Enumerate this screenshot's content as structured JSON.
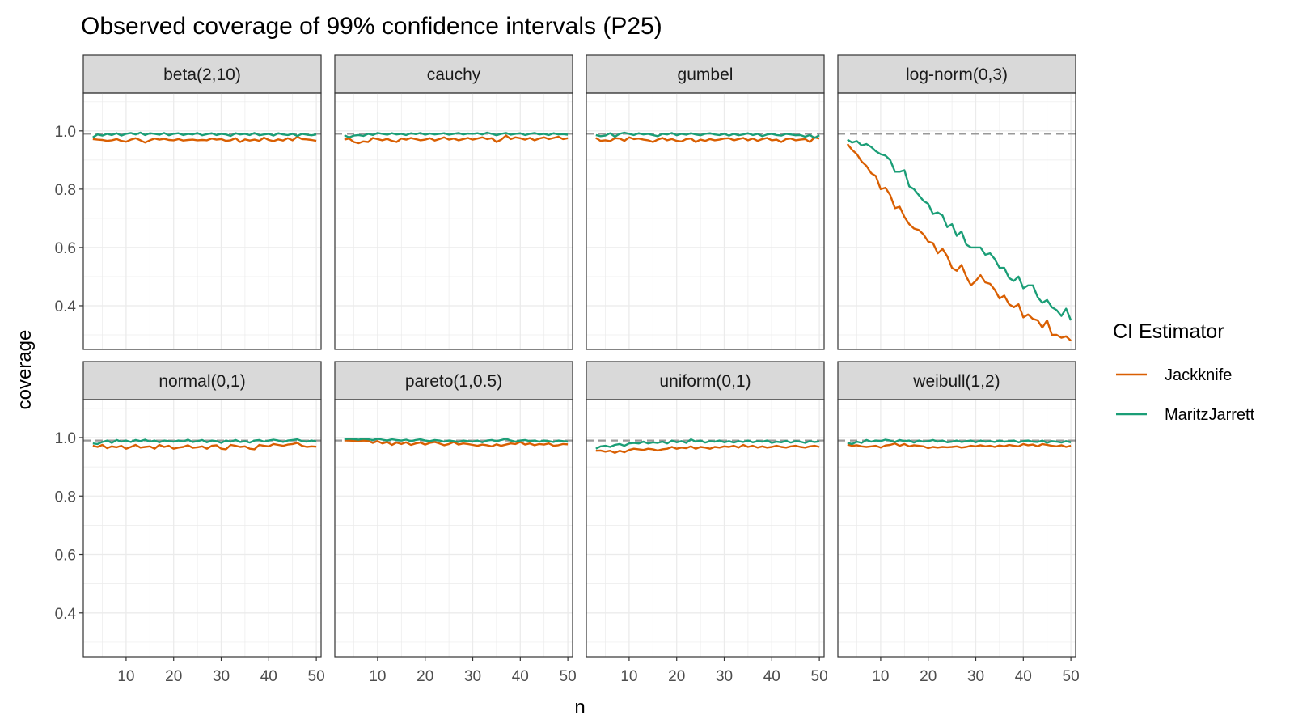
{
  "chart_data": {
    "type": "line",
    "title": "Observed coverage of 99% confidence intervals (P25)",
    "xlabel": "n",
    "ylabel": "coverage",
    "xlim": [
      1,
      51
    ],
    "ylim": [
      0.25,
      1.13
    ],
    "x_ticks": [
      10,
      20,
      30,
      40,
      50
    ],
    "y_ticks": [
      0.4,
      0.6,
      0.8,
      1.0
    ],
    "y_tick_labels": [
      "0.4",
      "0.6",
      "0.8",
      "1.0"
    ],
    "reference_line": 0.99,
    "grid": true,
    "facet_layout": {
      "rows": 2,
      "cols": 4
    },
    "legend": {
      "title": "CI Estimator",
      "position": "right",
      "entries": [
        {
          "name": "Jackknife",
          "color": "#D95F02"
        },
        {
          "name": "MaritzJarrett",
          "color": "#1B9E77"
        }
      ]
    },
    "x": [
      3,
      4,
      5,
      6,
      7,
      8,
      9,
      10,
      11,
      12,
      13,
      14,
      15,
      16,
      17,
      18,
      19,
      20,
      21,
      22,
      23,
      24,
      25,
      26,
      27,
      28,
      29,
      30,
      31,
      32,
      33,
      34,
      35,
      36,
      37,
      38,
      39,
      40,
      41,
      42,
      43,
      44,
      45,
      46,
      47,
      48,
      49,
      50
    ],
    "panels": [
      {
        "title": "beta(2,10)",
        "series": [
          {
            "name": "Jackknife",
            "values": [
              0.972,
              0.97,
              0.969,
              0.966,
              0.968,
              0.972,
              0.966,
              0.963,
              0.97,
              0.975,
              0.968,
              0.96,
              0.968,
              0.974,
              0.97,
              0.973,
              0.969,
              0.968,
              0.972,
              0.967,
              0.969,
              0.97,
              0.968,
              0.969,
              0.968,
              0.974,
              0.97,
              0.972,
              0.966,
              0.968,
              0.975,
              0.962,
              0.971,
              0.967,
              0.97,
              0.966,
              0.977,
              0.969,
              0.965,
              0.971,
              0.967,
              0.975,
              0.968,
              0.98,
              0.972,
              0.971,
              0.969,
              0.966
            ]
          },
          {
            "name": "MaritzJarrett",
            "values": [
              0.978,
              0.988,
              0.984,
              0.99,
              0.986,
              0.992,
              0.984,
              0.99,
              0.993,
              0.988,
              0.994,
              0.986,
              0.992,
              0.99,
              0.987,
              0.993,
              0.985,
              0.99,
              0.992,
              0.986,
              0.99,
              0.988,
              0.993,
              0.985,
              0.989,
              0.992,
              0.986,
              0.99,
              0.988,
              0.983,
              0.992,
              0.988,
              0.99,
              0.986,
              0.993,
              0.985,
              0.988,
              0.99,
              0.984,
              0.992,
              0.988,
              0.986,
              0.99,
              0.983,
              0.99,
              0.987,
              0.985,
              0.988
            ]
          }
        ]
      },
      {
        "title": "cauchy",
        "series": [
          {
            "name": "Jackknife",
            "values": [
              0.97,
              0.974,
              0.962,
              0.958,
              0.964,
              0.962,
              0.976,
              0.972,
              0.968,
              0.973,
              0.966,
              0.962,
              0.974,
              0.97,
              0.976,
              0.972,
              0.968,
              0.97,
              0.975,
              0.967,
              0.972,
              0.978,
              0.97,
              0.974,
              0.968,
              0.972,
              0.976,
              0.97,
              0.974,
              0.978,
              0.972,
              0.975,
              0.962,
              0.97,
              0.984,
              0.972,
              0.978,
              0.975,
              0.97,
              0.976,
              0.968,
              0.974,
              0.978,
              0.972,
              0.976,
              0.98,
              0.972,
              0.975
            ]
          },
          {
            "name": "MaritzJarrett",
            "values": [
              0.985,
              0.978,
              0.984,
              0.986,
              0.983,
              0.99,
              0.986,
              0.993,
              0.99,
              0.987,
              0.992,
              0.988,
              0.99,
              0.986,
              0.992,
              0.989,
              0.993,
              0.987,
              0.991,
              0.988,
              0.99,
              0.992,
              0.987,
              0.99,
              0.993,
              0.988,
              0.991,
              0.99,
              0.992,
              0.988,
              0.994,
              0.99,
              0.985,
              0.99,
              0.993,
              0.987,
              0.99,
              0.992,
              0.986,
              0.99,
              0.993,
              0.988,
              0.99,
              0.986,
              0.992,
              0.988,
              0.989,
              0.987
            ]
          }
        ]
      },
      {
        "title": "gumbel",
        "series": [
          {
            "name": "Jackknife",
            "values": [
              0.976,
              0.966,
              0.968,
              0.965,
              0.975,
              0.974,
              0.966,
              0.978,
              0.972,
              0.974,
              0.97,
              0.968,
              0.962,
              0.97,
              0.976,
              0.968,
              0.972,
              0.966,
              0.964,
              0.972,
              0.974,
              0.962,
              0.97,
              0.966,
              0.972,
              0.968,
              0.97,
              0.974,
              0.975,
              0.968,
              0.972,
              0.976,
              0.968,
              0.974,
              0.966,
              0.972,
              0.976,
              0.968,
              0.97,
              0.962,
              0.972,
              0.974,
              0.968,
              0.97,
              0.972,
              0.962,
              0.978,
              0.974
            ]
          },
          {
            "name": "MaritzJarrett",
            "values": [
              0.986,
              0.982,
              0.984,
              0.992,
              0.98,
              0.99,
              0.994,
              0.99,
              0.986,
              0.992,
              0.988,
              0.99,
              0.986,
              0.982,
              0.99,
              0.988,
              0.993,
              0.985,
              0.99,
              0.987,
              0.992,
              0.988,
              0.985,
              0.99,
              0.992,
              0.988,
              0.986,
              0.99,
              0.984,
              0.99,
              0.985,
              0.988,
              0.992,
              0.986,
              0.99,
              0.982,
              0.988,
              0.99,
              0.986,
              0.984,
              0.99,
              0.988,
              0.985,
              0.986,
              0.98,
              0.986,
              0.976,
              0.985
            ]
          }
        ]
      },
      {
        "title": "log-norm(0,3)",
        "series": [
          {
            "name": "Jackknife",
            "values": [
              0.955,
              0.935,
              0.92,
              0.895,
              0.88,
              0.855,
              0.845,
              0.8,
              0.805,
              0.78,
              0.735,
              0.74,
              0.705,
              0.68,
              0.665,
              0.66,
              0.645,
              0.62,
              0.615,
              0.58,
              0.595,
              0.57,
              0.53,
              0.52,
              0.54,
              0.5,
              0.47,
              0.485,
              0.505,
              0.48,
              0.475,
              0.455,
              0.425,
              0.435,
              0.405,
              0.395,
              0.405,
              0.36,
              0.37,
              0.355,
              0.35,
              0.325,
              0.35,
              0.3,
              0.3,
              0.29,
              0.295,
              0.28
            ]
          },
          {
            "name": "MaritzJarrett",
            "values": [
              0.97,
              0.96,
              0.965,
              0.95,
              0.955,
              0.945,
              0.93,
              0.92,
              0.915,
              0.9,
              0.86,
              0.86,
              0.865,
              0.81,
              0.8,
              0.78,
              0.76,
              0.75,
              0.715,
              0.72,
              0.71,
              0.67,
              0.68,
              0.64,
              0.655,
              0.61,
              0.6,
              0.6,
              0.6,
              0.575,
              0.58,
              0.56,
              0.53,
              0.53,
              0.495,
              0.485,
              0.5,
              0.46,
              0.47,
              0.47,
              0.43,
              0.41,
              0.42,
              0.395,
              0.385,
              0.365,
              0.39,
              0.35
            ]
          }
        ]
      },
      {
        "title": "normal(0,1)",
        "series": [
          {
            "name": "Jackknife",
            "values": [
              0.972,
              0.968,
              0.975,
              0.964,
              0.97,
              0.967,
              0.972,
              0.962,
              0.968,
              0.975,
              0.966,
              0.968,
              0.97,
              0.962,
              0.975,
              0.968,
              0.972,
              0.962,
              0.966,
              0.968,
              0.974,
              0.965,
              0.967,
              0.97,
              0.962,
              0.972,
              0.974,
              0.962,
              0.96,
              0.975,
              0.972,
              0.968,
              0.97,
              0.962,
              0.96,
              0.975,
              0.972,
              0.97,
              0.978,
              0.975,
              0.972,
              0.976,
              0.978,
              0.982,
              0.972,
              0.968,
              0.97,
              0.969
            ]
          },
          {
            "name": "MaritzJarrett",
            "values": [
              0.98,
              0.978,
              0.985,
              0.99,
              0.982,
              0.992,
              0.986,
              0.99,
              0.985,
              0.992,
              0.988,
              0.993,
              0.986,
              0.99,
              0.984,
              0.99,
              0.988,
              0.986,
              0.99,
              0.987,
              0.993,
              0.985,
              0.988,
              0.992,
              0.984,
              0.99,
              0.988,
              0.982,
              0.99,
              0.986,
              0.992,
              0.985,
              0.988,
              0.983,
              0.99,
              0.992,
              0.986,
              0.99,
              0.993,
              0.99,
              0.985,
              0.99,
              0.992,
              0.994,
              0.988,
              0.986,
              0.99,
              0.987
            ]
          }
        ]
      },
      {
        "title": "pareto(1,0.5)",
        "series": [
          {
            "name": "Jackknife",
            "values": [
              0.99,
              0.99,
              0.989,
              0.988,
              0.99,
              0.989,
              0.982,
              0.988,
              0.98,
              0.985,
              0.975,
              0.983,
              0.978,
              0.984,
              0.975,
              0.98,
              0.983,
              0.976,
              0.982,
              0.985,
              0.98,
              0.974,
              0.978,
              0.985,
              0.976,
              0.98,
              0.978,
              0.975,
              0.972,
              0.976,
              0.974,
              0.97,
              0.977,
              0.972,
              0.976,
              0.98,
              0.978,
              0.985,
              0.976,
              0.98,
              0.974,
              0.978,
              0.976,
              0.98,
              0.972,
              0.974,
              0.978,
              0.977
            ]
          },
          {
            "name": "MaritzJarrett",
            "values": [
              0.994,
              0.996,
              0.995,
              0.993,
              0.996,
              0.994,
              0.992,
              0.996,
              0.993,
              0.99,
              0.994,
              0.992,
              0.99,
              0.993,
              0.988,
              0.992,
              0.994,
              0.99,
              0.988,
              0.992,
              0.99,
              0.986,
              0.99,
              0.988,
              0.985,
              0.99,
              0.988,
              0.986,
              0.99,
              0.984,
              0.99,
              0.992,
              0.988,
              0.992,
              0.996,
              0.99,
              0.986,
              0.99,
              0.992,
              0.988,
              0.99,
              0.986,
              0.99,
              0.988,
              0.985,
              0.99,
              0.988,
              0.986
            ]
          }
        ]
      },
      {
        "title": "uniform(0,1)",
        "series": [
          {
            "name": "Jackknife",
            "values": [
              0.955,
              0.956,
              0.952,
              0.955,
              0.948,
              0.955,
              0.95,
              0.958,
              0.962,
              0.96,
              0.958,
              0.962,
              0.96,
              0.956,
              0.96,
              0.962,
              0.968,
              0.962,
              0.966,
              0.964,
              0.97,
              0.962,
              0.968,
              0.966,
              0.962,
              0.968,
              0.966,
              0.97,
              0.968,
              0.972,
              0.966,
              0.975,
              0.968,
              0.972,
              0.966,
              0.97,
              0.966,
              0.968,
              0.972,
              0.968,
              0.966,
              0.97,
              0.972,
              0.968,
              0.966,
              0.97,
              0.972,
              0.968
            ]
          },
          {
            "name": "MaritzJarrett",
            "values": [
              0.962,
              0.97,
              0.972,
              0.968,
              0.975,
              0.978,
              0.972,
              0.98,
              0.982,
              0.98,
              0.986,
              0.98,
              0.984,
              0.982,
              0.986,
              0.98,
              0.99,
              0.984,
              0.988,
              0.982,
              0.994,
              0.986,
              0.99,
              0.983,
              0.988,
              0.986,
              0.99,
              0.984,
              0.988,
              0.983,
              0.988,
              0.985,
              0.99,
              0.984,
              0.988,
              0.986,
              0.99,
              0.982,
              0.986,
              0.984,
              0.989,
              0.983,
              0.988,
              0.986,
              0.982,
              0.988,
              0.985,
              0.987
            ]
          }
        ]
      },
      {
        "title": "weibull(1,2)",
        "series": [
          {
            "name": "Jackknife",
            "values": [
              0.976,
              0.972,
              0.974,
              0.97,
              0.968,
              0.97,
              0.972,
              0.966,
              0.973,
              0.975,
              0.98,
              0.972,
              0.978,
              0.97,
              0.974,
              0.972,
              0.97,
              0.964,
              0.968,
              0.966,
              0.968,
              0.967,
              0.968,
              0.97,
              0.966,
              0.968,
              0.972,
              0.97,
              0.974,
              0.97,
              0.972,
              0.968,
              0.973,
              0.97,
              0.975,
              0.972,
              0.97,
              0.978,
              0.974,
              0.976,
              0.97,
              0.978,
              0.975,
              0.972,
              0.97,
              0.974,
              0.968,
              0.972
            ]
          },
          {
            "name": "MaritzJarrett",
            "values": [
              0.982,
              0.978,
              0.986,
              0.982,
              0.992,
              0.986,
              0.99,
              0.988,
              0.993,
              0.99,
              0.985,
              0.992,
              0.988,
              0.99,
              0.983,
              0.99,
              0.986,
              0.988,
              0.992,
              0.986,
              0.99,
              0.984,
              0.986,
              0.99,
              0.985,
              0.988,
              0.99,
              0.984,
              0.99,
              0.986,
              0.988,
              0.985,
              0.99,
              0.986,
              0.988,
              0.99,
              0.984,
              0.988,
              0.99,
              0.986,
              0.985,
              0.99,
              0.982,
              0.988,
              0.986,
              0.983,
              0.988,
              0.984
            ]
          }
        ]
      }
    ]
  }
}
